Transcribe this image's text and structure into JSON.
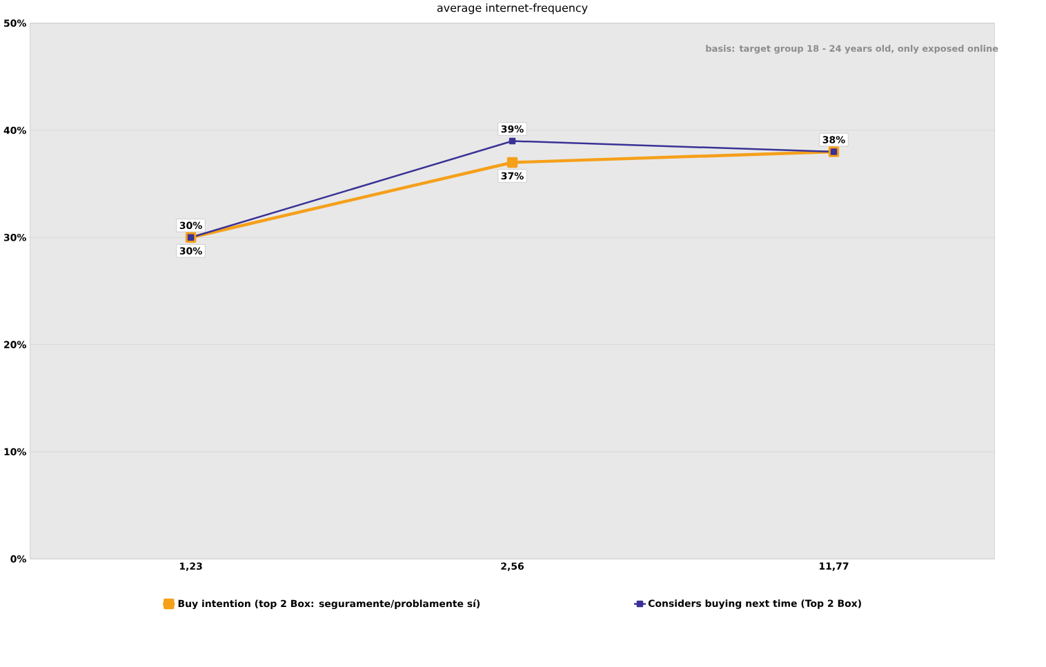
{
  "chart_data": {
    "type": "line",
    "title": "average internet-frequency",
    "annotations": [
      "basis:  target group 18 - 24 years old,  only exposed online"
    ],
    "categories": [
      "1,23",
      "2,56",
      "11,77"
    ],
    "series": [
      {
        "name": "Buy intention (top 2 Box: seguramente/problamente sí)",
        "color": "#f5a01a",
        "values": [
          30,
          37,
          38
        ],
        "value_labels": [
          "30%",
          "37%",
          null
        ]
      },
      {
        "name": "Considers buying next time (Top 2 Box)",
        "color": "#3a3296",
        "values": [
          30,
          39,
          38
        ],
        "value_labels": [
          "30%",
          "39%",
          "38%"
        ]
      }
    ],
    "ylim": [
      0,
      50
    ],
    "yticks": [
      {
        "value": 0,
        "label": "0%"
      },
      {
        "value": 10,
        "label": "10%"
      },
      {
        "value": 20,
        "label": "20%"
      },
      {
        "value": 30,
        "label": "30%"
      },
      {
        "value": 40,
        "label": "40%"
      },
      {
        "value": 50,
        "label": "50%"
      }
    ],
    "grid": "y",
    "legend": "bottom",
    "marker": "square",
    "line_style": "solid"
  }
}
